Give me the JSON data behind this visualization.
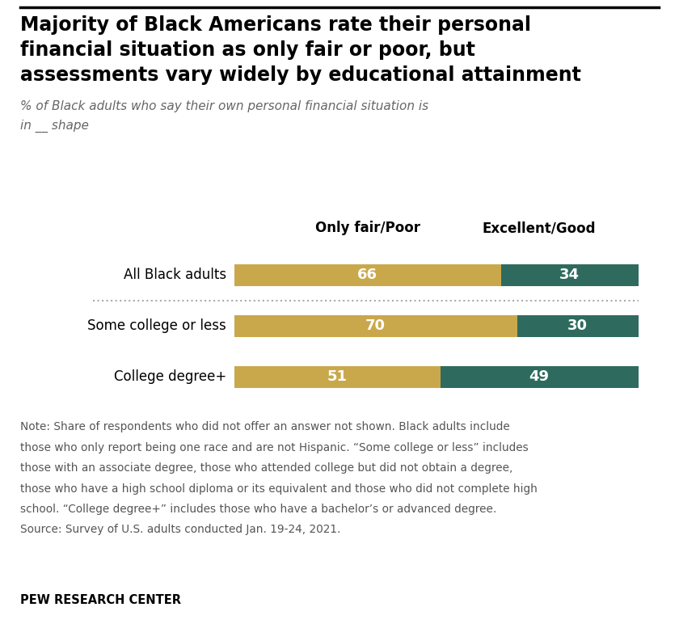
{
  "title_line1": "Majority of Black Americans rate their personal",
  "title_line2": "financial situation as only fair or poor, but",
  "title_line3": "assessments vary widely by educational attainment",
  "subtitle_line1": "% of Black adults who say their own personal financial situation is",
  "subtitle_line2": "in __ shape",
  "col_label_left": "Only fair/Poor",
  "col_label_right": "Excellent/Good",
  "categories": [
    "All Black adults",
    "Some college or less",
    "College degree+"
  ],
  "fair_poor": [
    66,
    70,
    51
  ],
  "excellent_good": [
    34,
    30,
    49
  ],
  "color_fair_poor": "#C9A84C",
  "color_excellent_good": "#2E6B5E",
  "note_line1": "Note: Share of respondents who did not offer an answer not shown. Black adults include",
  "note_line2": "those who only report being one race and are not Hispanic. “Some college or less” includes",
  "note_line3": "those with an associate degree, those who attended college but did not obtain a degree,",
  "note_line4": "those who have a high school diploma or its equivalent and those who did not complete high",
  "note_line5": "school. “College degree+” includes those who have a bachelor’s or advanced degree.",
  "note_line6": "Source: Survey of U.S. adults conducted Jan. 19-24, 2021.",
  "source_label": "PEW RESEARCH CENTER",
  "background_color": "#FFFFFF",
  "bar_height": 0.42,
  "bar_max": 100,
  "title_fontsize": 17,
  "subtitle_fontsize": 11,
  "cat_fontsize": 12,
  "bar_label_fontsize": 13,
  "col_header_fontsize": 12,
  "note_fontsize": 9.8,
  "source_fontsize": 10.5
}
